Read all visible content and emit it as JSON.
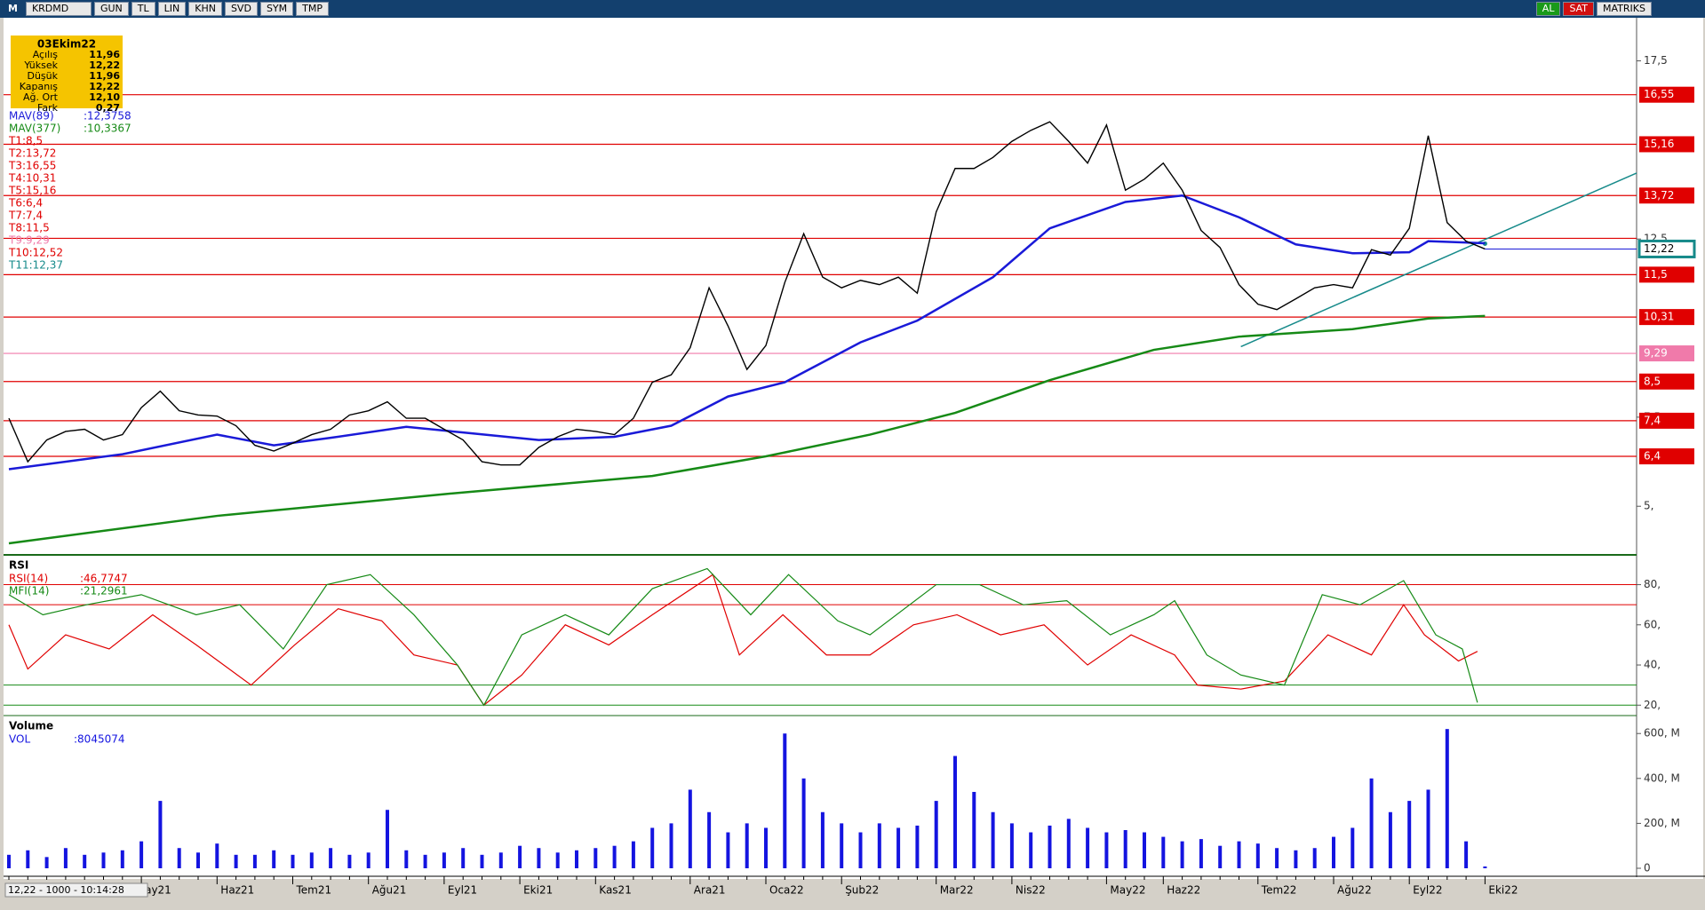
{
  "toolbar": {
    "menu": "M",
    "symbol": "KRDMD",
    "buttons": [
      "GUN",
      "TL",
      "LIN",
      "KHN",
      "SVD",
      "SYM",
      "TMP"
    ],
    "right": [
      "AL",
      "SAT",
      "MATRIKS"
    ]
  },
  "info_box": {
    "title": "03Ekim22",
    "rows": [
      [
        "Açılış",
        "11,96"
      ],
      [
        "Yüksek",
        "12,22"
      ],
      [
        "Düşük",
        "11,96"
      ],
      [
        "Kapanış",
        "12,22"
      ],
      [
        "Ağ. Ort",
        "12,10"
      ],
      [
        "Fark",
        "0,27"
      ]
    ]
  },
  "status": "12,22 - 1000 - 10:14:28",
  "chart_data": [
    {
      "type": "line",
      "color": "#000000",
      "categories": [
        null,
        null,
        null,
        null,
        null,
        null,
        null,
        "ay21",
        null,
        null,
        null,
        "Haz21",
        null,
        null,
        null,
        "Tem21",
        null,
        null,
        null,
        "Ağu21",
        null,
        null,
        null,
        "Eyl21",
        null,
        null,
        null,
        "Eki21",
        null,
        null,
        null,
        "Kas21",
        null,
        null,
        null,
        null,
        "Ara21",
        null,
        null,
        null,
        "Oca22",
        null,
        null,
        null,
        "Şub22",
        null,
        null,
        null,
        null,
        "Mar22",
        null,
        null,
        null,
        "Nis22",
        null,
        null,
        null,
        null,
        "May22",
        null,
        null,
        "Haz22",
        null,
        null,
        null,
        null,
        "Tem22",
        null,
        null,
        null,
        "Ağu22",
        null,
        null,
        null,
        "Eyl22",
        null,
        null,
        null,
        "Eki22"
      ],
      "values": [
        7.47,
        6.25,
        6.86,
        7.1,
        7.16,
        6.86,
        7.01,
        7.77,
        8.23,
        7.68,
        7.56,
        7.53,
        7.26,
        6.71,
        6.55,
        6.77,
        7.01,
        7.16,
        7.56,
        7.68,
        7.93,
        7.47,
        7.47,
        7.16,
        6.86,
        6.25,
        6.16,
        6.16,
        6.65,
        6.95,
        7.16,
        7.1,
        7.01,
        7.47,
        8.48,
        8.69,
        9.45,
        11.13,
        10.06,
        8.84,
        9.51,
        11.28,
        12.65,
        11.43,
        11.13,
        11.34,
        11.22,
        11.43,
        10.98,
        13.26,
        14.48,
        14.48,
        14.79,
        15.24,
        15.55,
        15.79,
        15.24,
        14.63,
        15.7,
        13.87,
        14.18,
        14.63,
        13.87,
        12.74,
        12.26,
        11.22,
        10.67,
        10.52,
        10.82,
        11.13,
        11.22,
        11.13,
        12.2,
        12.05,
        12.8,
        15.4,
        12.96,
        12.44,
        12.22
      ],
      "ylim": [
        3.66,
        18.66
      ],
      "yticks": [
        {
          "value": 5,
          "label": "5,"
        },
        {
          "value": 7.5,
          "label": "7,5"
        },
        {
          "value": 12.5,
          "label": "12,5"
        },
        {
          "value": 17.5,
          "label": "17,5"
        }
      ],
      "series": [
        {
          "name": "MAV(89)",
          "color": "#1a1ad8",
          "readout": {
            "value": 12.3758,
            "label": ":12,3758"
          },
          "x": [
            0,
            6,
            11,
            14,
            17,
            21,
            24,
            28,
            32,
            35,
            38,
            41,
            45,
            48,
            52,
            55,
            59,
            62,
            65,
            68,
            71,
            74,
            75,
            78
          ],
          "values": [
            6.04,
            6.46,
            7.01,
            6.71,
            6.92,
            7.23,
            7.07,
            6.86,
            6.95,
            7.26,
            8.08,
            8.48,
            9.6,
            10.21,
            11.43,
            12.8,
            13.54,
            13.72,
            13.11,
            12.35,
            12.1,
            12.13,
            12.44,
            12.38
          ]
        },
        {
          "name": "MAV(377)",
          "color": "#168a16",
          "readout": {
            "value": 10.3367,
            "label": ":10,3367"
          },
          "x": [
            0,
            11,
            23,
            34,
            40,
            45.5,
            50,
            55,
            60.5,
            65,
            71,
            75,
            78
          ],
          "values": [
            3.96,
            4.73,
            5.34,
            5.85,
            6.4,
            7.01,
            7.62,
            8.54,
            9.39,
            9.76,
            9.97,
            10.27,
            10.34
          ]
        }
      ],
      "levels": [
        {
          "name": "T1:8,5",
          "value": 8.5,
          "color": "#e00000",
          "box_label": "8,5"
        },
        {
          "name": "T2:13,72",
          "value": 13.72,
          "color": "#e00000",
          "box_label": "13,72"
        },
        {
          "name": "T3:16,55",
          "value": 16.55,
          "color": "#e00000",
          "box_label": "16,55"
        },
        {
          "name": "T4:10,31",
          "value": 10.31,
          "color": "#e00000",
          "box_label": "10,31"
        },
        {
          "name": "T5:15,16",
          "value": 15.16,
          "color": "#e00000",
          "box_label": "15,16"
        },
        {
          "name": "T6:6,4",
          "value": 6.4,
          "color": "#e00000",
          "box_label": "6,4"
        },
        {
          "name": "T7:7,4",
          "value": 7.4,
          "color": "#e00000",
          "box_label": "7,4"
        },
        {
          "name": "T8:11,5",
          "value": 11.5,
          "color": "#e00000",
          "box_label": "11,5"
        },
        {
          "name": "T9:9,29",
          "value": 9.29,
          "color": "#f07aaa",
          "box_label": "9,29"
        },
        {
          "name": "T10:12,52",
          "value": 12.52,
          "color": "#e00000"
        }
      ],
      "trendline": {
        "name": "T11:12,37",
        "value": 12.37,
        "color": "#168a8a",
        "x": [
          65.1,
          86.3
        ],
        "values": [
          9.48,
          14.42
        ]
      },
      "current": {
        "value": 12.22,
        "label": "12,22",
        "color": "#168a8a"
      }
    },
    {
      "type": "line",
      "title": "RSI",
      "ylim": [
        15.7,
        93.5
      ],
      "yticks": [
        {
          "value": 20,
          "label": "20,"
        },
        {
          "value": 40,
          "label": "40,"
        },
        {
          "value": 60,
          "label": "60,"
        },
        {
          "value": 80,
          "label": "80,"
        }
      ],
      "bands": [
        {
          "value": 80,
          "color": "#e00000"
        },
        {
          "value": 70,
          "color": "#e00000"
        },
        {
          "value": 30,
          "color": "#168a16"
        },
        {
          "value": 20,
          "color": "#168a16"
        }
      ],
      "series": [
        {
          "name": "RSI(14)",
          "color": "#e00000",
          "readout": {
            "value": 46.7747,
            "label": ":46,7747"
          },
          "x": [
            0,
            1,
            3,
            5.3,
            7.6,
            9.9,
            12.8,
            15.1,
            17.4,
            19.7,
            21.4,
            23.7,
            25.1,
            27.1,
            29.4,
            31.7,
            34,
            37.2,
            38.6,
            40.9,
            43.2,
            45.5,
            47.8,
            50.1,
            52.4,
            54.7,
            57,
            59.3,
            61.6,
            62.8,
            65.1,
            67.4,
            69.7,
            72,
            73.7,
            74.8,
            76.6,
            77.6
          ],
          "values": [
            60,
            38,
            55,
            48,
            65,
            50,
            30,
            50,
            68,
            62,
            45,
            40,
            20,
            35,
            60,
            50,
            65,
            85,
            45,
            65,
            45,
            45,
            60,
            65,
            55,
            60,
            40,
            55,
            45,
            30,
            28,
            32,
            55,
            45,
            70,
            55,
            42,
            46.7747
          ]
        },
        {
          "name": "MFI(14)",
          "color": "#168a16",
          "readout": {
            "value": 21.2961,
            "label": ":21,2961"
          },
          "x": [
            0,
            1.8,
            4.1,
            7,
            9.9,
            12.2,
            14.5,
            16.8,
            19.1,
            21.4,
            23.7,
            25.1,
            27.1,
            29.4,
            31.7,
            34,
            36.9,
            39.2,
            41.2,
            43.8,
            45.5,
            49,
            51.3,
            53.6,
            55.9,
            58.2,
            60.5,
            61.6,
            63.3,
            65.1,
            67.4,
            69.4,
            71.4,
            73.7,
            75.4,
            76.8,
            77.6
          ],
          "values": [
            75,
            65,
            70,
            75,
            65,
            70,
            48,
            80,
            85,
            65,
            40,
            20,
            55,
            65,
            55,
            78,
            88,
            65,
            85,
            62,
            55,
            80,
            80,
            70,
            72,
            55,
            65,
            72,
            45,
            35,
            30,
            75,
            70,
            82,
            55,
            48,
            21.2961
          ]
        }
      ]
    },
    {
      "type": "bar",
      "title": "Volume",
      "ylim": [
        0,
        672
      ],
      "yticks": [
        {
          "value": 0,
          "label": "0"
        },
        {
          "value": 200,
          "label": "200, M"
        },
        {
          "value": 400,
          "label": "400, M"
        },
        {
          "value": 600,
          "label": "600, M"
        }
      ],
      "series": [
        {
          "name": "VOL",
          "color": "#1414e0",
          "readout": {
            "value": 8.045074,
            "label": ":8045074"
          },
          "values": [
            60,
            80,
            50,
            90,
            60,
            70,
            80,
            120,
            300,
            90,
            70,
            110,
            60,
            60,
            80,
            60,
            70,
            90,
            60,
            70,
            260,
            80,
            60,
            70,
            90,
            60,
            70,
            100,
            90,
            70,
            80,
            90,
            100,
            120,
            180,
            200,
            350,
            250,
            160,
            200,
            180,
            600,
            400,
            250,
            200,
            160,
            200,
            180,
            190,
            300,
            500,
            340,
            250,
            200,
            160,
            190,
            220,
            180,
            160,
            170,
            160,
            140,
            120,
            130,
            100,
            120,
            110,
            90,
            80,
            90,
            140,
            180,
            400,
            250,
            300,
            350,
            620,
            120,
            8.045074
          ]
        }
      ]
    }
  ]
}
